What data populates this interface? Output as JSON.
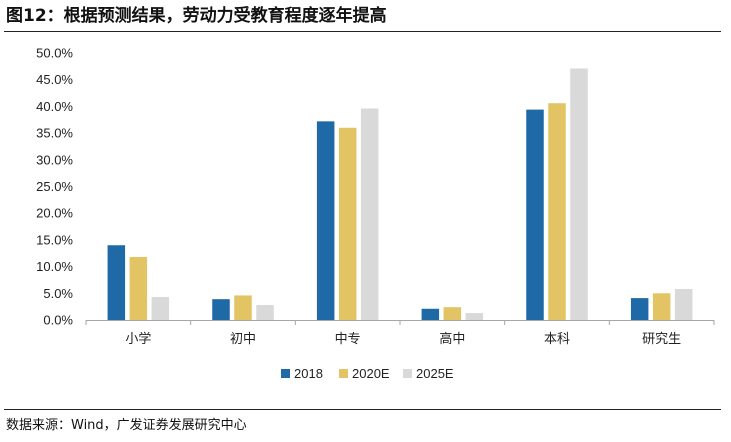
{
  "header": {
    "title": "图12：根据预测结果，劳动力受教育程度逐年提高"
  },
  "footer": {
    "source": "数据来源：Wind，广发证券发展研究中心"
  },
  "colors": {
    "s2018": "#1f6aa6",
    "s2020E": "#e3c464",
    "s2025E": "#d9d9d9",
    "axis": "#a6a6a6"
  },
  "chart_data": {
    "type": "bar",
    "title": "根据预测结果，劳动力受教育程度逐年提高",
    "xlabel": "",
    "ylabel": "",
    "ylim": [
      0,
      50
    ],
    "yticks": [
      0,
      5,
      10,
      15,
      20,
      25,
      30,
      35,
      40,
      45,
      50
    ],
    "ytick_labels": [
      "0.0%",
      "5.0%",
      "10.0%",
      "15.0%",
      "20.0%",
      "25.0%",
      "30.0%",
      "35.0%",
      "40.0%",
      "45.0%",
      "50.0%"
    ],
    "categories": [
      "小学",
      "初中",
      "中专",
      "高中",
      "本科",
      "研究生"
    ],
    "series": [
      {
        "name": "2018",
        "color": "#1f6aa6",
        "values": [
          14.0,
          3.9,
          37.2,
          2.1,
          39.4,
          4.1
        ]
      },
      {
        "name": "2020E",
        "color": "#e3c464",
        "values": [
          11.8,
          4.6,
          36.0,
          2.4,
          40.6,
          5.0
        ]
      },
      {
        "name": "2025E",
        "color": "#d9d9d9",
        "values": [
          4.3,
          2.8,
          39.6,
          1.3,
          47.1,
          5.8
        ]
      }
    ],
    "legend": "bottom-center",
    "grid": false
  }
}
